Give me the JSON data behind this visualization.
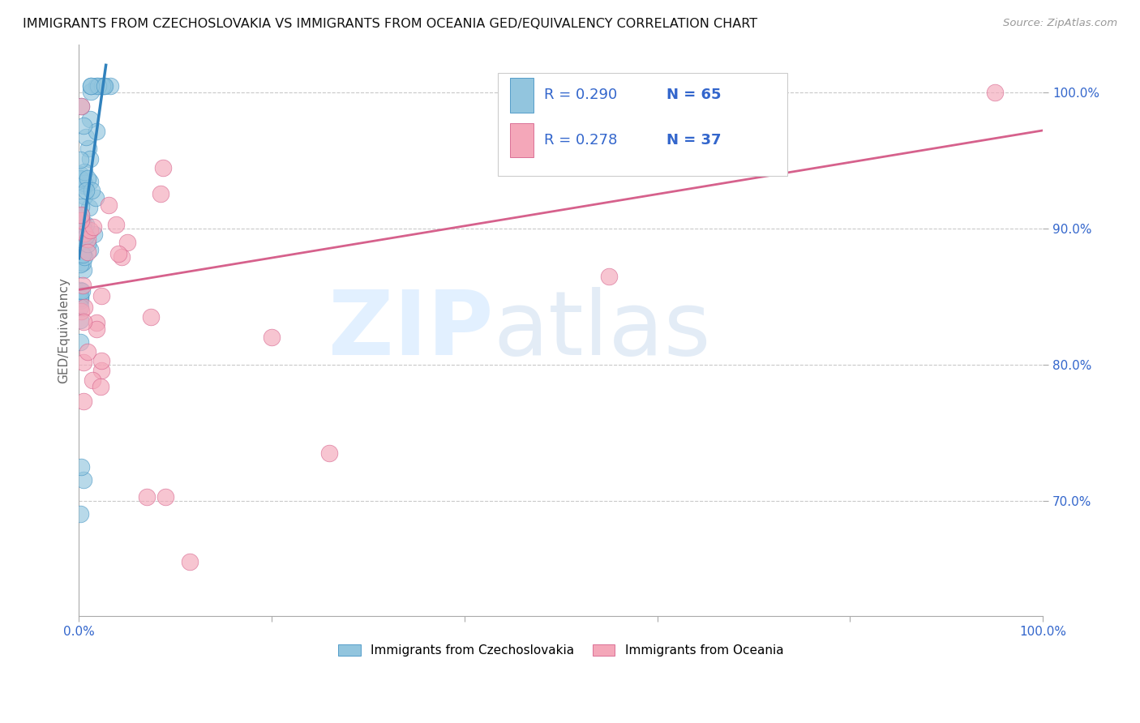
{
  "title": "IMMIGRANTS FROM CZECHOSLOVAKIA VS IMMIGRANTS FROM OCEANIA GED/EQUIVALENCY CORRELATION CHART",
  "source": "Source: ZipAtlas.com",
  "ylabel": "GED/Equivalency",
  "ylabel_ticks": [
    "70.0%",
    "80.0%",
    "90.0%",
    "100.0%"
  ],
  "ylabel_tick_vals": [
    0.7,
    0.8,
    0.9,
    1.0
  ],
  "xlim": [
    0.0,
    1.0
  ],
  "ylim": [
    0.615,
    1.035
  ],
  "legend_r1": "R = 0.290",
  "legend_n1": "N = 65",
  "legend_r2": "R = 0.278",
  "legend_n2": "N = 37",
  "color_blue": "#92c5de",
  "color_pink": "#f4a7b9",
  "color_blue_dark": "#4393c3",
  "color_pink_dark": "#d6618c",
  "color_blue_line": "#3182bd",
  "color_pink_line": "#d6618c",
  "blue_line_x0": 0.0,
  "blue_line_y0": 0.878,
  "blue_line_x1": 0.028,
  "blue_line_y1": 1.02,
  "pink_line_x0": 0.0,
  "pink_line_y0": 0.855,
  "pink_line_x1": 1.0,
  "pink_line_y1": 0.972
}
